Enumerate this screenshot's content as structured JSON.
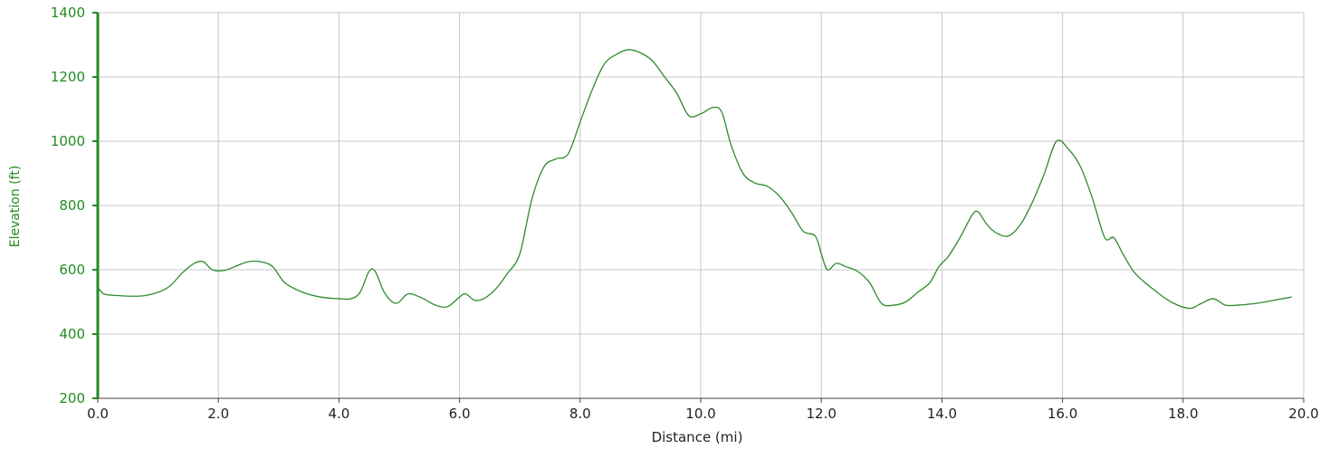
{
  "chart_data": {
    "type": "line",
    "title": "",
    "xlabel": "Distance (mi)",
    "ylabel": "Elevation (ft)",
    "xlim": [
      0,
      20
    ],
    "ylim": [
      200,
      1400
    ],
    "x_ticks": [
      "0.0",
      "2.0",
      "4.0",
      "6.0",
      "8.0",
      "10.0",
      "12.0",
      "14.0",
      "16.0",
      "18.0",
      "20.0"
    ],
    "y_ticks": [
      "200",
      "400",
      "600",
      "800",
      "1000",
      "1200",
      "1400"
    ],
    "grid": true,
    "legend": "none",
    "colors": {
      "line": "#2e8b2e",
      "y_axis": "#228B22",
      "grid": "#c8c8c8"
    },
    "series": [
      {
        "x": [
          0,
          0.1,
          0.3,
          0.7,
          1.0,
          1.2,
          1.4,
          1.6,
          1.75,
          1.9,
          2.1,
          2.3,
          2.5,
          2.7,
          2.9,
          3.1,
          3.4,
          3.7,
          4.0,
          4.2,
          4.35,
          4.5,
          4.6,
          4.75,
          4.9,
          5.0,
          5.1,
          5.2,
          5.4,
          5.6,
          5.8,
          6.0,
          6.1,
          6.25,
          6.4,
          6.6,
          6.8,
          7.0,
          7.2,
          7.4,
          7.6,
          7.8,
          8.0,
          8.2,
          8.4,
          8.6,
          8.8,
          9.0,
          9.2,
          9.4,
          9.6,
          9.8,
          10.0,
          10.2,
          10.35,
          10.5,
          10.7,
          10.9,
          11.1,
          11.3,
          11.5,
          11.7,
          11.9,
          12.0,
          12.1,
          12.25,
          12.4,
          12.6,
          12.8,
          13.0,
          13.2,
          13.4,
          13.6,
          13.8,
          13.95,
          14.1,
          14.3,
          14.5,
          14.6,
          14.75,
          14.9,
          15.1,
          15.3,
          15.5,
          15.7,
          15.9,
          16.1,
          16.3,
          16.5,
          16.7,
          16.85,
          17.0,
          17.2,
          17.5,
          17.8,
          18.1,
          18.3,
          18.5,
          18.7,
          18.9,
          19.2,
          19.5,
          19.8
        ],
        "y": [
          545,
          525,
          520,
          518,
          530,
          550,
          590,
          620,
          625,
          600,
          598,
          612,
          625,
          625,
          610,
          560,
          530,
          515,
          510,
          510,
          530,
          595,
          595,
          530,
          498,
          500,
          520,
          525,
          510,
          490,
          485,
          515,
          525,
          505,
          510,
          540,
          590,
          650,
          820,
          920,
          945,
          960,
          1060,
          1160,
          1240,
          1270,
          1285,
          1275,
          1250,
          1200,
          1150,
          1080,
          1085,
          1105,
          1090,
          990,
          900,
          870,
          860,
          830,
          780,
          720,
          705,
          650,
          600,
          620,
          610,
          595,
          560,
          495,
          490,
          500,
          530,
          560,
          610,
          640,
          700,
          770,
          780,
          740,
          715,
          705,
          740,
          810,
          900,
          1000,
          975,
          920,
          820,
          700,
          700,
          650,
          590,
          540,
          500,
          480,
          495,
          510,
          490,
          490,
          495,
          505,
          515
        ]
      }
    ]
  }
}
